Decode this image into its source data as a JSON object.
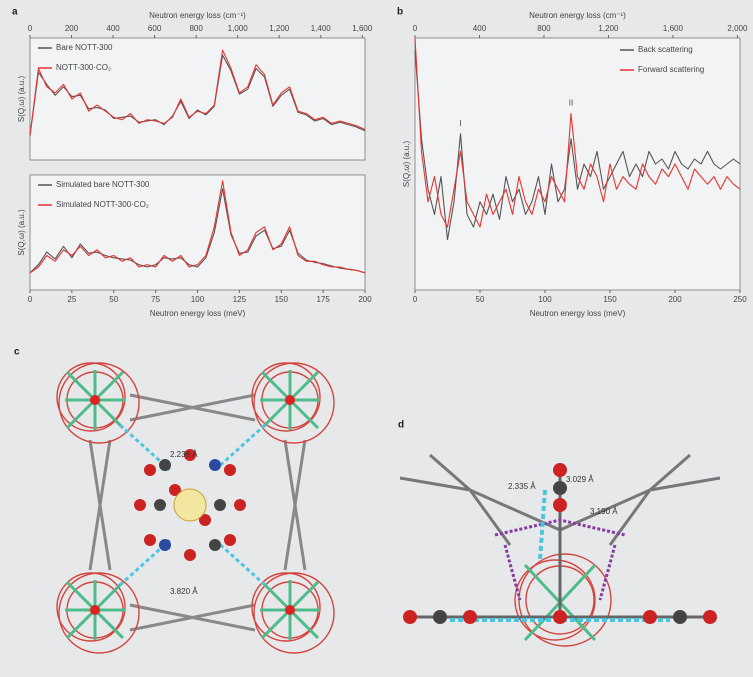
{
  "chart_data": [
    {
      "type": "line",
      "panel": "a",
      "x2label": "Neutron energy loss (cm⁻¹)",
      "ylabel": "S(Q,ω) (a.u.)",
      "x": [
        0,
        5,
        10,
        15,
        20,
        25,
        30,
        35,
        40,
        45,
        50,
        55,
        60,
        65,
        70,
        75,
        80,
        85,
        90,
        95,
        100,
        105,
        110,
        115,
        120,
        125,
        130,
        135,
        140,
        145,
        150,
        155,
        160,
        165,
        170,
        175,
        180,
        185,
        190,
        195,
        200
      ],
      "series": [
        {
          "name": "Bare NOTT-300",
          "color": "#555555",
          "values": [
            0.2,
            0.72,
            0.62,
            0.53,
            0.6,
            0.52,
            0.53,
            0.42,
            0.43,
            0.41,
            0.34,
            0.35,
            0.36,
            0.31,
            0.32,
            0.33,
            0.29,
            0.36,
            0.48,
            0.34,
            0.41,
            0.37,
            0.44,
            0.86,
            0.73,
            0.54,
            0.58,
            0.75,
            0.68,
            0.44,
            0.53,
            0.58,
            0.39,
            0.37,
            0.32,
            0.34,
            0.29,
            0.31,
            0.29,
            0.27,
            0.24
          ]
        },
        {
          "name": "NOTT-300·CO₂",
          "color": "#e8332f",
          "values": [
            0.2,
            0.75,
            0.6,
            0.55,
            0.62,
            0.5,
            0.55,
            0.4,
            0.45,
            0.4,
            0.35,
            0.33,
            0.38,
            0.3,
            0.33,
            0.32,
            0.3,
            0.35,
            0.5,
            0.35,
            0.4,
            0.38,
            0.45,
            0.9,
            0.75,
            0.55,
            0.6,
            0.78,
            0.7,
            0.45,
            0.55,
            0.6,
            0.4,
            0.38,
            0.33,
            0.35,
            0.3,
            0.32,
            0.3,
            0.28,
            0.25
          ]
        }
      ],
      "xlim": [
        0,
        200
      ],
      "ylim": [
        0,
        1
      ],
      "x2lim": [
        0,
        1613
      ],
      "x2ticks": [
        0,
        200,
        400,
        600,
        800,
        {
          "value": 1000,
          "label": "1,000"
        },
        {
          "value": 1200,
          "label": "1,200"
        },
        {
          "value": 1400,
          "label": "1,400"
        },
        {
          "value": 1600,
          "label": "1,600"
        }
      ],
      "legend": "upper left"
    },
    {
      "type": "line",
      "xlabel": "Neutron energy loss (meV)",
      "ylabel": "S(Q,ω) (a.u.)",
      "x": [
        0,
        5,
        10,
        15,
        20,
        25,
        30,
        35,
        40,
        45,
        50,
        55,
        60,
        65,
        70,
        75,
        80,
        85,
        90,
        95,
        100,
        105,
        110,
        115,
        120,
        125,
        130,
        135,
        140,
        145,
        150,
        155,
        160,
        165,
        170,
        175,
        180,
        185,
        190,
        195,
        200
      ],
      "series": [
        {
          "name": "Simulated bare NOTT-300",
          "color": "#555555",
          "values": [
            0.15,
            0.22,
            0.33,
            0.27,
            0.38,
            0.28,
            0.4,
            0.32,
            0.33,
            0.3,
            0.28,
            0.27,
            0.26,
            0.22,
            0.2,
            0.22,
            0.28,
            0.27,
            0.28,
            0.22,
            0.2,
            0.28,
            0.5,
            0.88,
            0.48,
            0.32,
            0.33,
            0.47,
            0.52,
            0.36,
            0.38,
            0.52,
            0.32,
            0.26,
            0.24,
            0.23,
            0.21,
            0.19,
            0.18,
            0.17,
            0.15
          ]
        },
        {
          "name": "Simulated NOTT-300·CO₂",
          "color": "#e8332f",
          "values": [
            0.15,
            0.2,
            0.3,
            0.25,
            0.35,
            0.3,
            0.38,
            0.3,
            0.35,
            0.28,
            0.3,
            0.25,
            0.28,
            0.2,
            0.22,
            0.2,
            0.3,
            0.25,
            0.3,
            0.2,
            0.22,
            0.3,
            0.55,
            0.95,
            0.5,
            0.3,
            0.35,
            0.5,
            0.55,
            0.35,
            0.4,
            0.55,
            0.3,
            0.25,
            0.25,
            0.22,
            0.2,
            0.2,
            0.18,
            0.17,
            0.15
          ]
        }
      ],
      "xlim": [
        0,
        200
      ],
      "ylim": [
        0,
        1
      ],
      "xticks": [
        0,
        25,
        50,
        75,
        100,
        125,
        150,
        175,
        200
      ],
      "legend": "upper left"
    },
    {
      "type": "line",
      "panel": "b",
      "x2label": "Neutron energy loss (cm⁻¹)",
      "xlabel": "Neutron energy loss (meV)",
      "ylabel": "S(Q,ω) (a.u.)",
      "x": [
        0,
        5,
        10,
        15,
        20,
        25,
        30,
        35,
        40,
        45,
        50,
        55,
        60,
        65,
        70,
        75,
        80,
        85,
        90,
        95,
        100,
        105,
        110,
        115,
        120,
        125,
        130,
        135,
        140,
        145,
        150,
        155,
        160,
        165,
        170,
        175,
        180,
        185,
        190,
        195,
        200,
        205,
        210,
        215,
        220,
        225,
        230,
        235,
        240,
        245,
        250
      ],
      "series": [
        {
          "name": "Back scattering",
          "color": "#555555",
          "values": [
            0.95,
            0.6,
            0.4,
            0.3,
            0.45,
            0.2,
            0.35,
            0.62,
            0.3,
            0.25,
            0.35,
            0.3,
            0.38,
            0.28,
            0.45,
            0.35,
            0.4,
            0.3,
            0.35,
            0.45,
            0.3,
            0.5,
            0.35,
            0.4,
            0.6,
            0.4,
            0.5,
            0.45,
            0.55,
            0.4,
            0.45,
            0.5,
            0.55,
            0.45,
            0.5,
            0.45,
            0.55,
            0.5,
            0.52,
            0.48,
            0.55,
            0.5,
            0.48,
            0.52,
            0.5,
            0.55,
            0.5,
            0.48,
            0.5,
            0.52,
            0.5
          ]
        },
        {
          "name": "Forward scattering",
          "color": "#e8332f",
          "values": [
            1.0,
            0.55,
            0.35,
            0.45,
            0.3,
            0.25,
            0.4,
            0.55,
            0.35,
            0.3,
            0.25,
            0.38,
            0.3,
            0.35,
            0.4,
            0.3,
            0.45,
            0.35,
            0.3,
            0.4,
            0.35,
            0.45,
            0.4,
            0.35,
            0.7,
            0.45,
            0.4,
            0.5,
            0.45,
            0.35,
            0.5,
            0.4,
            0.45,
            0.42,
            0.4,
            0.5,
            0.45,
            0.42,
            0.48,
            0.45,
            0.5,
            0.45,
            0.4,
            0.48,
            0.45,
            0.42,
            0.45,
            0.4,
            0.45,
            0.42,
            0.4
          ]
        }
      ],
      "xlim": [
        0,
        250
      ],
      "ylim": [
        0,
        1
      ],
      "x2lim": [
        0,
        2016
      ],
      "xticks": [
        0,
        50,
        100,
        150,
        200,
        250
      ],
      "x2ticks": [
        0,
        400,
        800,
        {
          "value": 1200,
          "label": "1,200"
        },
        {
          "value": 1600,
          "label": "1,600"
        },
        {
          "value": 2000,
          "label": "2,000"
        }
      ],
      "annotations": [
        {
          "text": "I",
          "x": 35
        },
        {
          "text": "II",
          "x": 120
        }
      ],
      "legend": "upper right"
    }
  ],
  "diagrams": [
    {
      "panel": "c",
      "labels": [
        "2.236 Å",
        "3.820 Å"
      ]
    },
    {
      "panel": "d",
      "labels": [
        "2.335 Å",
        "3.029 Å",
        "3.190 Å"
      ]
    }
  ]
}
